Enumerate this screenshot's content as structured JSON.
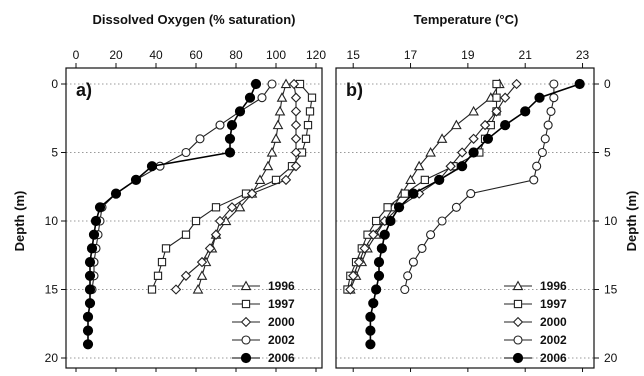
{
  "chart_data": [
    {
      "type": "line",
      "panel_label": "a)",
      "title": "Dissolved Oxygen (% saturation)",
      "xlabel": "Dissolved Oxygen (% saturation)",
      "ylabel": "Depth (m)",
      "xlim": [
        -5,
        123
      ],
      "ylim": [
        0,
        20
      ],
      "xticks": [
        0,
        20,
        40,
        60,
        80,
        100,
        120
      ],
      "yticks": [
        0,
        5,
        10,
        15,
        20
      ],
      "y_inverted": true,
      "x_axis_position": "top",
      "grid": "horizontal dotted at 0, 5, 10, 15, 20",
      "legend_position": "bottom-right",
      "series": [
        {
          "name": "1996",
          "marker": "triangle",
          "color": "#222222",
          "points": [
            [
              105,
              0
            ],
            [
              103,
              1
            ],
            [
              102,
              2
            ],
            [
              101,
              3
            ],
            [
              100,
              4
            ],
            [
              98,
              5
            ],
            [
              96,
              6
            ],
            [
              92,
              7
            ],
            [
              88,
              8
            ],
            [
              82,
              9
            ],
            [
              75,
              10
            ],
            [
              70,
              11
            ],
            [
              68,
              12
            ],
            [
              65,
              13
            ],
            [
              63,
              14
            ],
            [
              61,
              15
            ]
          ]
        },
        {
          "name": "1997",
          "marker": "square",
          "color": "#222222",
          "points": [
            [
              112,
              0
            ],
            [
              118,
              1
            ],
            [
              117,
              2
            ],
            [
              116,
              3
            ],
            [
              115,
              4
            ],
            [
              113,
              5
            ],
            [
              108,
              6
            ],
            [
              100,
              7
            ],
            [
              85,
              8
            ],
            [
              70,
              9
            ],
            [
              60,
              10
            ],
            [
              55,
              11
            ],
            [
              45,
              12
            ],
            [
              43,
              13
            ],
            [
              41,
              14
            ],
            [
              38,
              15
            ]
          ]
        },
        {
          "name": "2000",
          "marker": "diamond",
          "color": "#222222",
          "points": [
            [
              109,
              0
            ],
            [
              110,
              1
            ],
            [
              110,
              2
            ],
            [
              110,
              3
            ],
            [
              110,
              4
            ],
            [
              110,
              5
            ],
            [
              110,
              6
            ],
            [
              105,
              7
            ],
            [
              88,
              8
            ],
            [
              78,
              9
            ],
            [
              72,
              10
            ],
            [
              70,
              11
            ],
            [
              67,
              12
            ],
            [
              63,
              13
            ],
            [
              55,
              14
            ],
            [
              50,
              15
            ]
          ]
        },
        {
          "name": "2002",
          "marker": "circle-open",
          "color": "#222222",
          "points": [
            [
              98,
              0
            ],
            [
              93,
              1
            ],
            [
              82,
              2
            ],
            [
              72,
              3
            ],
            [
              62,
              4
            ],
            [
              55,
              5
            ],
            [
              42,
              6
            ],
            [
              30,
              7
            ],
            [
              20,
              8
            ],
            [
              13,
              9
            ],
            [
              12,
              10
            ],
            [
              11,
              11
            ],
            [
              10,
              12
            ],
            [
              9,
              13
            ],
            [
              9,
              14
            ],
            [
              8,
              15
            ]
          ]
        },
        {
          "name": "2006",
          "marker": "circle-filled",
          "color": "#000000",
          "points": [
            [
              90,
              0
            ],
            [
              87,
              1
            ],
            [
              82,
              2
            ],
            [
              78,
              3
            ],
            [
              77,
              4
            ],
            [
              77,
              5
            ],
            [
              38,
              6
            ],
            [
              30,
              7
            ],
            [
              20,
              8
            ],
            [
              12,
              9
            ],
            [
              10,
              10
            ],
            [
              9,
              11
            ],
            [
              8,
              12
            ],
            [
              7,
              13
            ],
            [
              7,
              14
            ],
            [
              7,
              15
            ],
            [
              7,
              16
            ],
            [
              6,
              17
            ],
            [
              6,
              18
            ],
            [
              6,
              19
            ]
          ]
        }
      ]
    },
    {
      "type": "line",
      "panel_label": "b)",
      "title": "Temperature (°C)",
      "xlabel": "Temperature (°C)",
      "ylabel": "Depth (m)",
      "xlim": [
        14.4,
        23.4
      ],
      "ylim": [
        0,
        20
      ],
      "xticks": [
        15,
        17,
        19,
        21,
        23
      ],
      "yticks": [
        0,
        5,
        10,
        15,
        20
      ],
      "y_inverted": true,
      "x_axis_position": "top",
      "grid": "horizontal dotted at 0, 5, 10, 15, 20",
      "legend_position": "bottom-right",
      "series": [
        {
          "name": "1996",
          "marker": "triangle",
          "color": "#222222",
          "points": [
            [
              20.1,
              0
            ],
            [
              19.8,
              1
            ],
            [
              19.2,
              2
            ],
            [
              18.6,
              3
            ],
            [
              18.1,
              4
            ],
            [
              17.7,
              5
            ],
            [
              17.3,
              6
            ],
            [
              17.0,
              7
            ],
            [
              16.7,
              8
            ],
            [
              16.4,
              9
            ],
            [
              16.1,
              10
            ],
            [
              15.8,
              11
            ],
            [
              15.5,
              12
            ],
            [
              15.3,
              13
            ],
            [
              15.1,
              14
            ],
            [
              14.9,
              15
            ]
          ]
        },
        {
          "name": "1997",
          "marker": "square",
          "color": "#222222",
          "points": [
            [
              20.0,
              0
            ],
            [
              20.0,
              1
            ],
            [
              20.0,
              2
            ],
            [
              19.8,
              3
            ],
            [
              19.6,
              4
            ],
            [
              19.4,
              5
            ],
            [
              18.5,
              6
            ],
            [
              17.5,
              7
            ],
            [
              16.8,
              8
            ],
            [
              16.2,
              9
            ],
            [
              15.8,
              10
            ],
            [
              15.5,
              11
            ],
            [
              15.3,
              12
            ],
            [
              15.1,
              13
            ],
            [
              14.9,
              14
            ],
            [
              14.8,
              15
            ]
          ]
        },
        {
          "name": "2000",
          "marker": "diamond",
          "color": "#222222",
          "points": [
            [
              20.7,
              0
            ],
            [
              20.3,
              1
            ],
            [
              20.0,
              2
            ],
            [
              19.6,
              3
            ],
            [
              19.2,
              4
            ],
            [
              18.8,
              5
            ],
            [
              18.4,
              6
            ],
            [
              18.0,
              7
            ],
            [
              17.3,
              8
            ],
            [
              16.6,
              9
            ],
            [
              16.1,
              10
            ],
            [
              15.7,
              11
            ],
            [
              15.4,
              12
            ],
            [
              15.2,
              13
            ],
            [
              15.0,
              14
            ],
            [
              14.9,
              15
            ]
          ]
        },
        {
          "name": "2002",
          "marker": "circle-open",
          "color": "#222222",
          "points": [
            [
              22.0,
              0
            ],
            [
              22.0,
              1
            ],
            [
              21.9,
              2
            ],
            [
              21.8,
              3
            ],
            [
              21.7,
              4
            ],
            [
              21.6,
              5
            ],
            [
              21.4,
              6
            ],
            [
              21.3,
              7
            ],
            [
              19.1,
              8
            ],
            [
              18.6,
              9
            ],
            [
              18.1,
              10
            ],
            [
              17.7,
              11
            ],
            [
              17.4,
              12
            ],
            [
              17.1,
              13
            ],
            [
              16.9,
              14
            ],
            [
              16.8,
              15
            ]
          ]
        },
        {
          "name": "2006",
          "marker": "circle-filled",
          "color": "#000000",
          "points": [
            [
              22.9,
              0
            ],
            [
              21.5,
              1
            ],
            [
              21.0,
              2
            ],
            [
              20.3,
              3
            ],
            [
              19.7,
              4
            ],
            [
              19.2,
              5
            ],
            [
              18.8,
              6
            ],
            [
              18.0,
              7
            ],
            [
              17.1,
              8
            ],
            [
              16.6,
              9
            ],
            [
              16.3,
              10
            ],
            [
              16.1,
              11
            ],
            [
              16.0,
              12
            ],
            [
              15.9,
              13
            ],
            [
              15.9,
              14
            ],
            [
              15.8,
              15
            ],
            [
              15.7,
              16
            ],
            [
              15.6,
              17
            ],
            [
              15.6,
              18
            ],
            [
              15.6,
              19
            ]
          ]
        }
      ]
    }
  ]
}
